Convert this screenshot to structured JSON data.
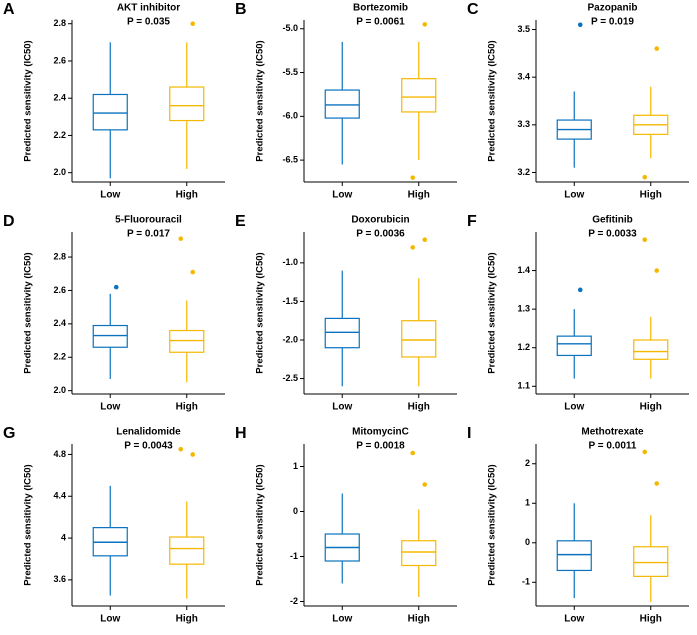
{
  "chart_data": [
    {
      "type": "box",
      "label": "A",
      "title": "AKT inhibitor",
      "annotation": "P = 0.035",
      "ylabel": "Predicted sensitivity (IC50)",
      "categories": [
        "Low",
        "High"
      ],
      "colors": [
        "#0a72bf",
        "#f5b800"
      ],
      "ylim": [
        1.95,
        2.82
      ],
      "yticks": [
        {
          "value": 2.0,
          "label": "2.0"
        },
        2.2,
        2.4,
        2.6,
        2.8
      ],
      "boxes": [
        {
          "min": 1.97,
          "q1": 2.23,
          "median": 2.32,
          "q3": 2.42,
          "max": 2.7,
          "outliers": []
        },
        {
          "min": 2.02,
          "q1": 2.28,
          "median": 2.36,
          "q3": 2.46,
          "max": 2.7,
          "outliers": [
            2.8
          ]
        }
      ]
    },
    {
      "type": "box",
      "label": "B",
      "title": "Bortezomib",
      "annotation": "P = 0.0061",
      "ylabel": "Predicted sensitivity (IC50)",
      "categories": [
        "Low",
        "High"
      ],
      "colors": [
        "#0a72bf",
        "#f5b800"
      ],
      "ylim": [
        -6.75,
        -4.9
      ],
      "yticks": [
        -6.5,
        {
          "value": -6.0,
          "label": "-6.0"
        },
        -5.5,
        {
          "value": -5.0,
          "label": "-5.0"
        }
      ],
      "boxes": [
        {
          "min": -6.55,
          "q1": -6.02,
          "median": -5.87,
          "q3": -5.7,
          "max": -5.15,
          "outliers": []
        },
        {
          "min": -6.5,
          "q1": -5.95,
          "median": -5.78,
          "q3": -5.57,
          "max": -5.15,
          "outliers": [
            -4.95,
            -6.7
          ]
        }
      ]
    },
    {
      "type": "box",
      "label": "C",
      "title": "Pazopanib",
      "annotation": "P = 0.019",
      "ylabel": "Predicted sensitivity (IC50)",
      "categories": [
        "Low",
        "High"
      ],
      "colors": [
        "#0a72bf",
        "#f5b800"
      ],
      "ylim": [
        3.18,
        3.52
      ],
      "yticks": [
        3.2,
        3.3,
        3.4,
        3.5
      ],
      "boxes": [
        {
          "min": 3.21,
          "q1": 3.27,
          "median": 3.29,
          "q3": 3.31,
          "max": 3.37,
          "outliers": [
            3.51
          ]
        },
        {
          "min": 3.23,
          "q1": 3.28,
          "median": 3.3,
          "q3": 3.32,
          "max": 3.38,
          "outliers": [
            3.46,
            3.19
          ]
        }
      ]
    },
    {
      "type": "box",
      "label": "D",
      "title": "5-Fluorouracil",
      "annotation": "P = 0.017",
      "ylabel": "Predicted sensitivity (IC50)",
      "categories": [
        "Low",
        "High"
      ],
      "colors": [
        "#0a72bf",
        "#f5b800"
      ],
      "ylim": [
        1.98,
        2.95
      ],
      "yticks": [
        {
          "value": 2.0,
          "label": "2.0"
        },
        2.2,
        2.4,
        2.6,
        2.8
      ],
      "boxes": [
        {
          "min": 2.07,
          "q1": 2.26,
          "median": 2.33,
          "q3": 2.39,
          "max": 2.58,
          "outliers": [
            2.62
          ]
        },
        {
          "min": 2.05,
          "q1": 2.23,
          "median": 2.3,
          "q3": 2.36,
          "max": 2.54,
          "outliers": [
            2.71,
            2.91
          ]
        }
      ]
    },
    {
      "type": "box",
      "label": "E",
      "title": "Doxorubicin",
      "annotation": "P = 0.0036",
      "ylabel": "Predicted sensitivity (IC50)",
      "categories": [
        "Low",
        "High"
      ],
      "colors": [
        "#0a72bf",
        "#f5b800"
      ],
      "ylim": [
        -2.7,
        -0.6
      ],
      "yticks": [
        -2.5,
        {
          "value": -2.0,
          "label": "-2.0"
        },
        -1.5,
        {
          "value": -1.0,
          "label": "-1.0"
        }
      ],
      "boxes": [
        {
          "min": -2.6,
          "q1": -2.1,
          "median": -1.9,
          "q3": -1.72,
          "max": -1.1,
          "outliers": []
        },
        {
          "min": -2.6,
          "q1": -2.22,
          "median": -2.0,
          "q3": -1.75,
          "max": -1.2,
          "outliers": [
            -0.7,
            -0.8
          ]
        }
      ]
    },
    {
      "type": "box",
      "label": "F",
      "title": "Gefitinib",
      "annotation": "P = 0.0033",
      "ylabel": "Predicted sensitivity (IC50)",
      "categories": [
        "Low",
        "High"
      ],
      "colors": [
        "#0a72bf",
        "#f5b800"
      ],
      "ylim": [
        1.08,
        1.5
      ],
      "yticks": [
        1.1,
        1.2,
        1.3,
        1.4
      ],
      "boxes": [
        {
          "min": 1.12,
          "q1": 1.18,
          "median": 1.21,
          "q3": 1.23,
          "max": 1.3,
          "outliers": [
            1.35
          ]
        },
        {
          "min": 1.12,
          "q1": 1.17,
          "median": 1.19,
          "q3": 1.22,
          "max": 1.28,
          "outliers": [
            1.4,
            1.48
          ]
        }
      ]
    },
    {
      "type": "box",
      "label": "G",
      "title": "Lenalidomide",
      "annotation": "P = 0.0043",
      "ylabel": "Predicted sensitivity (IC50)",
      "categories": [
        "Low",
        "High"
      ],
      "colors": [
        "#0a72bf",
        "#f5b800"
      ],
      "ylim": [
        3.35,
        4.9
      ],
      "yticks": [
        3.6,
        4.0,
        4.4,
        4.8
      ],
      "boxes": [
        {
          "min": 3.45,
          "q1": 3.83,
          "median": 3.96,
          "q3": 4.1,
          "max": 4.5,
          "outliers": []
        },
        {
          "min": 3.42,
          "q1": 3.75,
          "median": 3.9,
          "q3": 4.01,
          "max": 4.35,
          "outliers": [
            4.8,
            4.85
          ]
        }
      ]
    },
    {
      "type": "box",
      "label": "H",
      "title": "MitomycinC",
      "annotation": "P = 0.0018",
      "ylabel": "Predicted sensitivity (IC50)",
      "categories": [
        "Low",
        "High"
      ],
      "colors": [
        "#0a72bf",
        "#f5b800"
      ],
      "ylim": [
        -2.1,
        1.5
      ],
      "yticks": [
        -2,
        -1,
        0,
        1
      ],
      "boxes": [
        {
          "min": -1.6,
          "q1": -1.1,
          "median": -0.8,
          "q3": -0.5,
          "max": 0.4,
          "outliers": []
        },
        {
          "min": -1.9,
          "q1": -1.2,
          "median": -0.9,
          "q3": -0.65,
          "max": 0.05,
          "outliers": [
            0.6,
            1.3
          ]
        }
      ]
    },
    {
      "type": "box",
      "label": "I",
      "title": "Methotrexate",
      "annotation": "P = 0.0011",
      "ylabel": "Predicted sensitivity (IC50)",
      "categories": [
        "Low",
        "High"
      ],
      "colors": [
        "#0a72bf",
        "#f5b800"
      ],
      "ylim": [
        -1.6,
        2.5
      ],
      "yticks": [
        -1,
        0,
        1,
        2
      ],
      "boxes": [
        {
          "min": -1.4,
          "q1": -0.7,
          "median": -0.3,
          "q3": 0.05,
          "max": 1.0,
          "outliers": []
        },
        {
          "min": -1.5,
          "q1": -0.85,
          "median": -0.5,
          "q3": -0.1,
          "max": 0.7,
          "outliers": [
            1.5,
            2.3
          ]
        }
      ]
    }
  ]
}
